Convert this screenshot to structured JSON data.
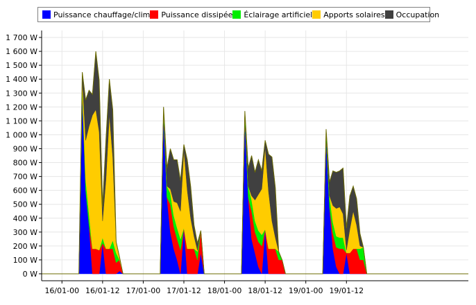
{
  "chart_data": {
    "type": "area",
    "stacked": true,
    "title": "",
    "xlabel": "",
    "ylabel": "",
    "y_unit": "W",
    "ylim": [
      -50,
      1750
    ],
    "y_ticks": [
      0,
      100,
      200,
      300,
      400,
      500,
      600,
      700,
      800,
      900,
      1000,
      1100,
      1200,
      1300,
      1400,
      1500,
      1600,
      1700
    ],
    "y_tick_labels": [
      "0 W",
      "100 W",
      "200 W",
      "300 W",
      "400 W",
      "500 W",
      "600 W",
      "700 W",
      "800 W",
      "900 W",
      "1 000 W",
      "1 100 W",
      "1 200 W",
      "1 300 W",
      "1 400 W",
      "1 500 W",
      "1 600 W",
      "1 700 W"
    ],
    "x_unit": "hours since 16/01 00:00",
    "xlim": [
      -6,
      120
    ],
    "x_ticks": [
      0,
      12,
      24,
      36,
      48,
      60,
      72,
      84
    ],
    "x_tick_labels": [
      "16/01-00",
      "16/01-12",
      "17/01-00",
      "17/01-12",
      "18/01-00",
      "18/01-12",
      "19/01-00",
      "19/01-12"
    ],
    "grid": true,
    "legend_position": "top",
    "legend": [
      "Puissance chauffage/clim",
      "Puissance dissipée",
      "Éclairage artificiel",
      "Apports solaires",
      "Occupation"
    ],
    "x": [
      -6,
      0,
      5,
      6,
      7,
      8,
      9,
      10,
      11,
      12,
      13,
      14,
      15,
      16,
      17,
      18,
      19,
      24,
      29,
      30,
      31,
      32,
      33,
      34,
      35,
      36,
      37,
      38,
      39,
      40,
      41,
      42,
      43,
      48,
      53,
      54,
      55,
      56,
      57,
      58,
      59,
      60,
      61,
      62,
      63,
      64,
      65,
      66,
      67,
      72,
      77,
      78,
      79,
      80,
      81,
      82,
      83,
      84,
      85,
      86,
      87,
      88,
      89,
      90,
      91,
      96,
      120
    ],
    "series": [
      {
        "name": "Puissance chauffage/clim",
        "color": "#0000FF",
        "values": [
          0,
          0,
          0,
          1300,
          600,
          350,
          0,
          0,
          0,
          220,
          0,
          0,
          0,
          0,
          20,
          0,
          0,
          0,
          0,
          1150,
          550,
          300,
          180,
          100,
          0,
          330,
          0,
          0,
          0,
          0,
          150,
          0,
          0,
          0,
          0,
          1120,
          550,
          250,
          150,
          50,
          0,
          320,
          0,
          0,
          0,
          0,
          0,
          0,
          0,
          0,
          0,
          980,
          480,
          180,
          50,
          0,
          0,
          150,
          0,
          0,
          0,
          0,
          0,
          0,
          0,
          0,
          0
        ]
      },
      {
        "name": "Puissance dissipée",
        "color": "#FF0000",
        "values": [
          0,
          0,
          0,
          0,
          0,
          0,
          180,
          180,
          170,
          0,
          180,
          180,
          180,
          80,
          80,
          0,
          0,
          0,
          0,
          0,
          0,
          200,
          160,
          150,
          170,
          0,
          180,
          180,
          180,
          100,
          160,
          0,
          0,
          0,
          0,
          0,
          0,
          200,
          150,
          180,
          200,
          0,
          180,
          180,
          180,
          100,
          100,
          0,
          0,
          0,
          0,
          0,
          0,
          110,
          140,
          180,
          180,
          0,
          150,
          180,
          180,
          100,
          100,
          0,
          0,
          0,
          0
        ]
      },
      {
        "name": "Éclairage artificiel",
        "color": "#00EE00",
        "values": [
          0,
          0,
          0,
          40,
          80,
          80,
          0,
          0,
          0,
          40,
          0,
          0,
          60,
          70,
          0,
          0,
          0,
          0,
          0,
          40,
          80,
          80,
          80,
          80,
          80,
          0,
          0,
          0,
          0,
          60,
          0,
          0,
          0,
          0,
          0,
          40,
          80,
          80,
          80,
          80,
          80,
          0,
          0,
          0,
          0,
          60,
          0,
          0,
          0,
          0,
          0,
          40,
          80,
          80,
          80,
          80,
          80,
          0,
          0,
          0,
          0,
          80,
          90,
          0,
          0,
          0,
          0
        ]
      },
      {
        "name": "Apports solaires",
        "color": "#FFCC00",
        "values": [
          0,
          0,
          0,
          60,
          280,
          630,
          960,
          1000,
          850,
          120,
          500,
          960,
          600,
          80,
          20,
          0,
          0,
          0,
          0,
          0,
          0,
          30,
          100,
          180,
          200,
          560,
          420,
          220,
          90,
          10,
          0,
          0,
          0,
          0,
          0,
          0,
          0,
          30,
          150,
          260,
          330,
          590,
          410,
          200,
          80,
          0,
          0,
          0,
          0,
          0,
          0,
          0,
          0,
          120,
          200,
          220,
          170,
          20,
          170,
          270,
          170,
          20,
          0,
          0,
          0,
          0,
          0
        ]
      },
      {
        "name": "Occupation",
        "color": "#404040",
        "values": [
          0,
          0,
          0,
          50,
          290,
          260,
          150,
          420,
          370,
          100,
          290,
          260,
          340,
          0,
          0,
          0,
          0,
          0,
          0,
          10,
          130,
          290,
          300,
          310,
          220,
          40,
          220,
          230,
          80,
          50,
          0,
          0,
          0,
          0,
          0,
          10,
          130,
          290,
          200,
          250,
          130,
          50,
          270,
          460,
          360,
          0,
          0,
          0,
          0,
          0,
          0,
          20,
          100,
          250,
          260,
          260,
          330,
          160,
          240,
          180,
          190,
          90,
          0,
          0,
          0,
          0,
          0
        ]
      }
    ]
  }
}
